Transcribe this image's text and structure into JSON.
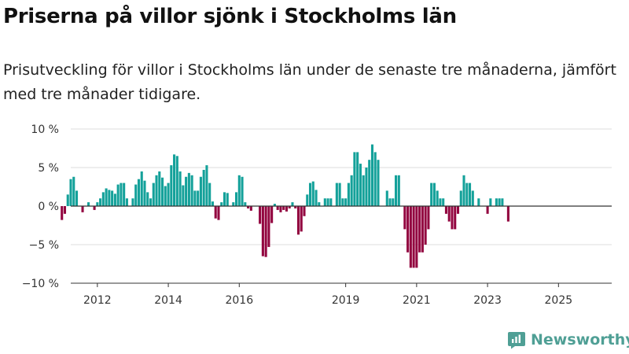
{
  "header": {
    "title": "Priserna på villor sjönk i Stockholms län",
    "subtitle": "Prisutveckling för villor i Stockholms län under de senaste tre månaderna, jämfört med tre månader tidigare."
  },
  "brand": {
    "name": "Newsworthy",
    "color": "#4f9f95"
  },
  "chart_data": {
    "type": "bar",
    "unit": "%",
    "ylim": [
      -10,
      10
    ],
    "yticks": [
      {
        "value": 10,
        "label": "10 %"
      },
      {
        "value": 5,
        "label": "5 %"
      },
      {
        "value": 0,
        "label": "0 %"
      },
      {
        "value": -5,
        "label": "−5 %"
      },
      {
        "value": -10,
        "label": "−10 %"
      }
    ],
    "xlim": [
      2011.25,
      2026.5
    ],
    "xticks": [
      {
        "value": 2012,
        "label": "2012"
      },
      {
        "value": 2014,
        "label": "2014"
      },
      {
        "value": 2016,
        "label": "2016"
      },
      {
        "value": 2019,
        "label": "2019"
      },
      {
        "value": 2021,
        "label": "2021"
      },
      {
        "value": 2023,
        "label": "2023"
      },
      {
        "value": 2025,
        "label": "2025"
      }
    ],
    "start": "2011-01",
    "frequency": "monthly",
    "positive_color": "#14a19a",
    "negative_color": "#930640",
    "grid": true,
    "values": [
      -1.8,
      -1.0,
      1.5,
      3.5,
      3.8,
      2.0,
      0,
      -0.8,
      0,
      0.5,
      0,
      -0.5,
      0.5,
      1.0,
      1.8,
      2.3,
      2.1,
      2.0,
      1.6,
      2.8,
      3.0,
      3.0,
      1.0,
      0,
      1.0,
      2.8,
      3.5,
      4.5,
      3.3,
      1.8,
      1.0,
      3.0,
      4.0,
      4.5,
      3.7,
      2.6,
      3.0,
      5.3,
      6.7,
      6.5,
      4.5,
      2.7,
      3.8,
      4.3,
      4.0,
      2.0,
      2.0,
      3.8,
      4.7,
      5.3,
      3.0,
      0.6,
      -1.6,
      -1.8,
      0.5,
      1.8,
      1.7,
      0,
      0.5,
      1.8,
      4.0,
      3.8,
      0.5,
      -0.3,
      -0.6,
      0,
      0,
      -2.3,
      -6.5,
      -6.6,
      -5.3,
      -2.2,
      0.3,
      -0.5,
      -0.8,
      -0.5,
      -0.7,
      -0.3,
      0.5,
      -0.3,
      -3.7,
      -3.3,
      -1.3,
      1.5,
      3.0,
      3.2,
      2.1,
      0.5,
      0,
      1.0,
      1.0,
      1.0,
      0,
      3.0,
      3.0,
      1.0,
      1.0,
      3.0,
      4.0,
      7.0,
      7.0,
      5.5,
      4.0,
      5.0,
      6.0,
      8.0,
      7.0,
      6.0,
      0,
      0,
      2.0,
      1.0,
      1.0,
      4.0,
      4.0,
      0,
      -3.0,
      -6.0,
      -8.0,
      -8.0,
      -8.0,
      -6.0,
      -6.0,
      -5.0,
      -3.0,
      3.0,
      3.0,
      2.0,
      1.0,
      1.0,
      -1.0,
      -2.0,
      -3.0,
      -3.0,
      -1.0,
      2.0,
      4.0,
      3.0,
      3.0,
      2.0,
      0,
      1.0,
      0,
      0,
      -1.0,
      1.0,
      0,
      1.0,
      1.0,
      1.0,
      0,
      -2.0
    ],
    "annotation": {
      "label": "−2 %",
      "index": 167
    }
  }
}
